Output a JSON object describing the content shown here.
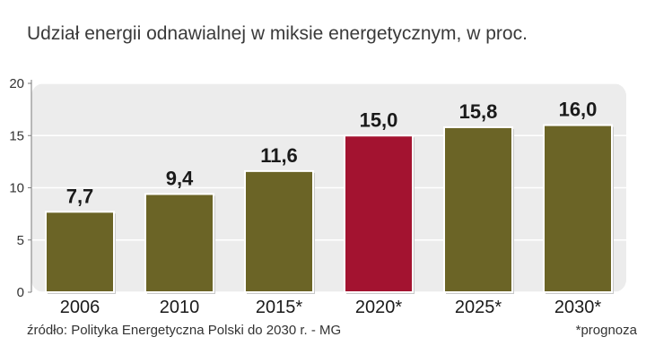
{
  "chart_data": {
    "type": "bar",
    "title": "Udział energii odnawialnej w miksie energetycznym, w proc.",
    "categories": [
      "2006",
      "2010",
      "2015*",
      "2020*",
      "2025*",
      "2030*"
    ],
    "values": [
      7.7,
      9.4,
      11.6,
      15.0,
      15.8,
      16.0
    ],
    "value_labels": [
      "7,7",
      "9,4",
      "11,6",
      "15,0",
      "15,8",
      "16,0"
    ],
    "yticks": [
      "0",
      "5",
      "10",
      "15",
      "20"
    ],
    "ylim": [
      0,
      20
    ],
    "grid": true,
    "colors": {
      "bar": "#6b6426",
      "highlight": "#a31330",
      "highlight_category": "2020*",
      "plot_bg": "#ececec"
    }
  },
  "footer": {
    "source": "źródło: Polityka Energetyczna Polski do 2030 r. - MG",
    "note": "*prognoza"
  }
}
